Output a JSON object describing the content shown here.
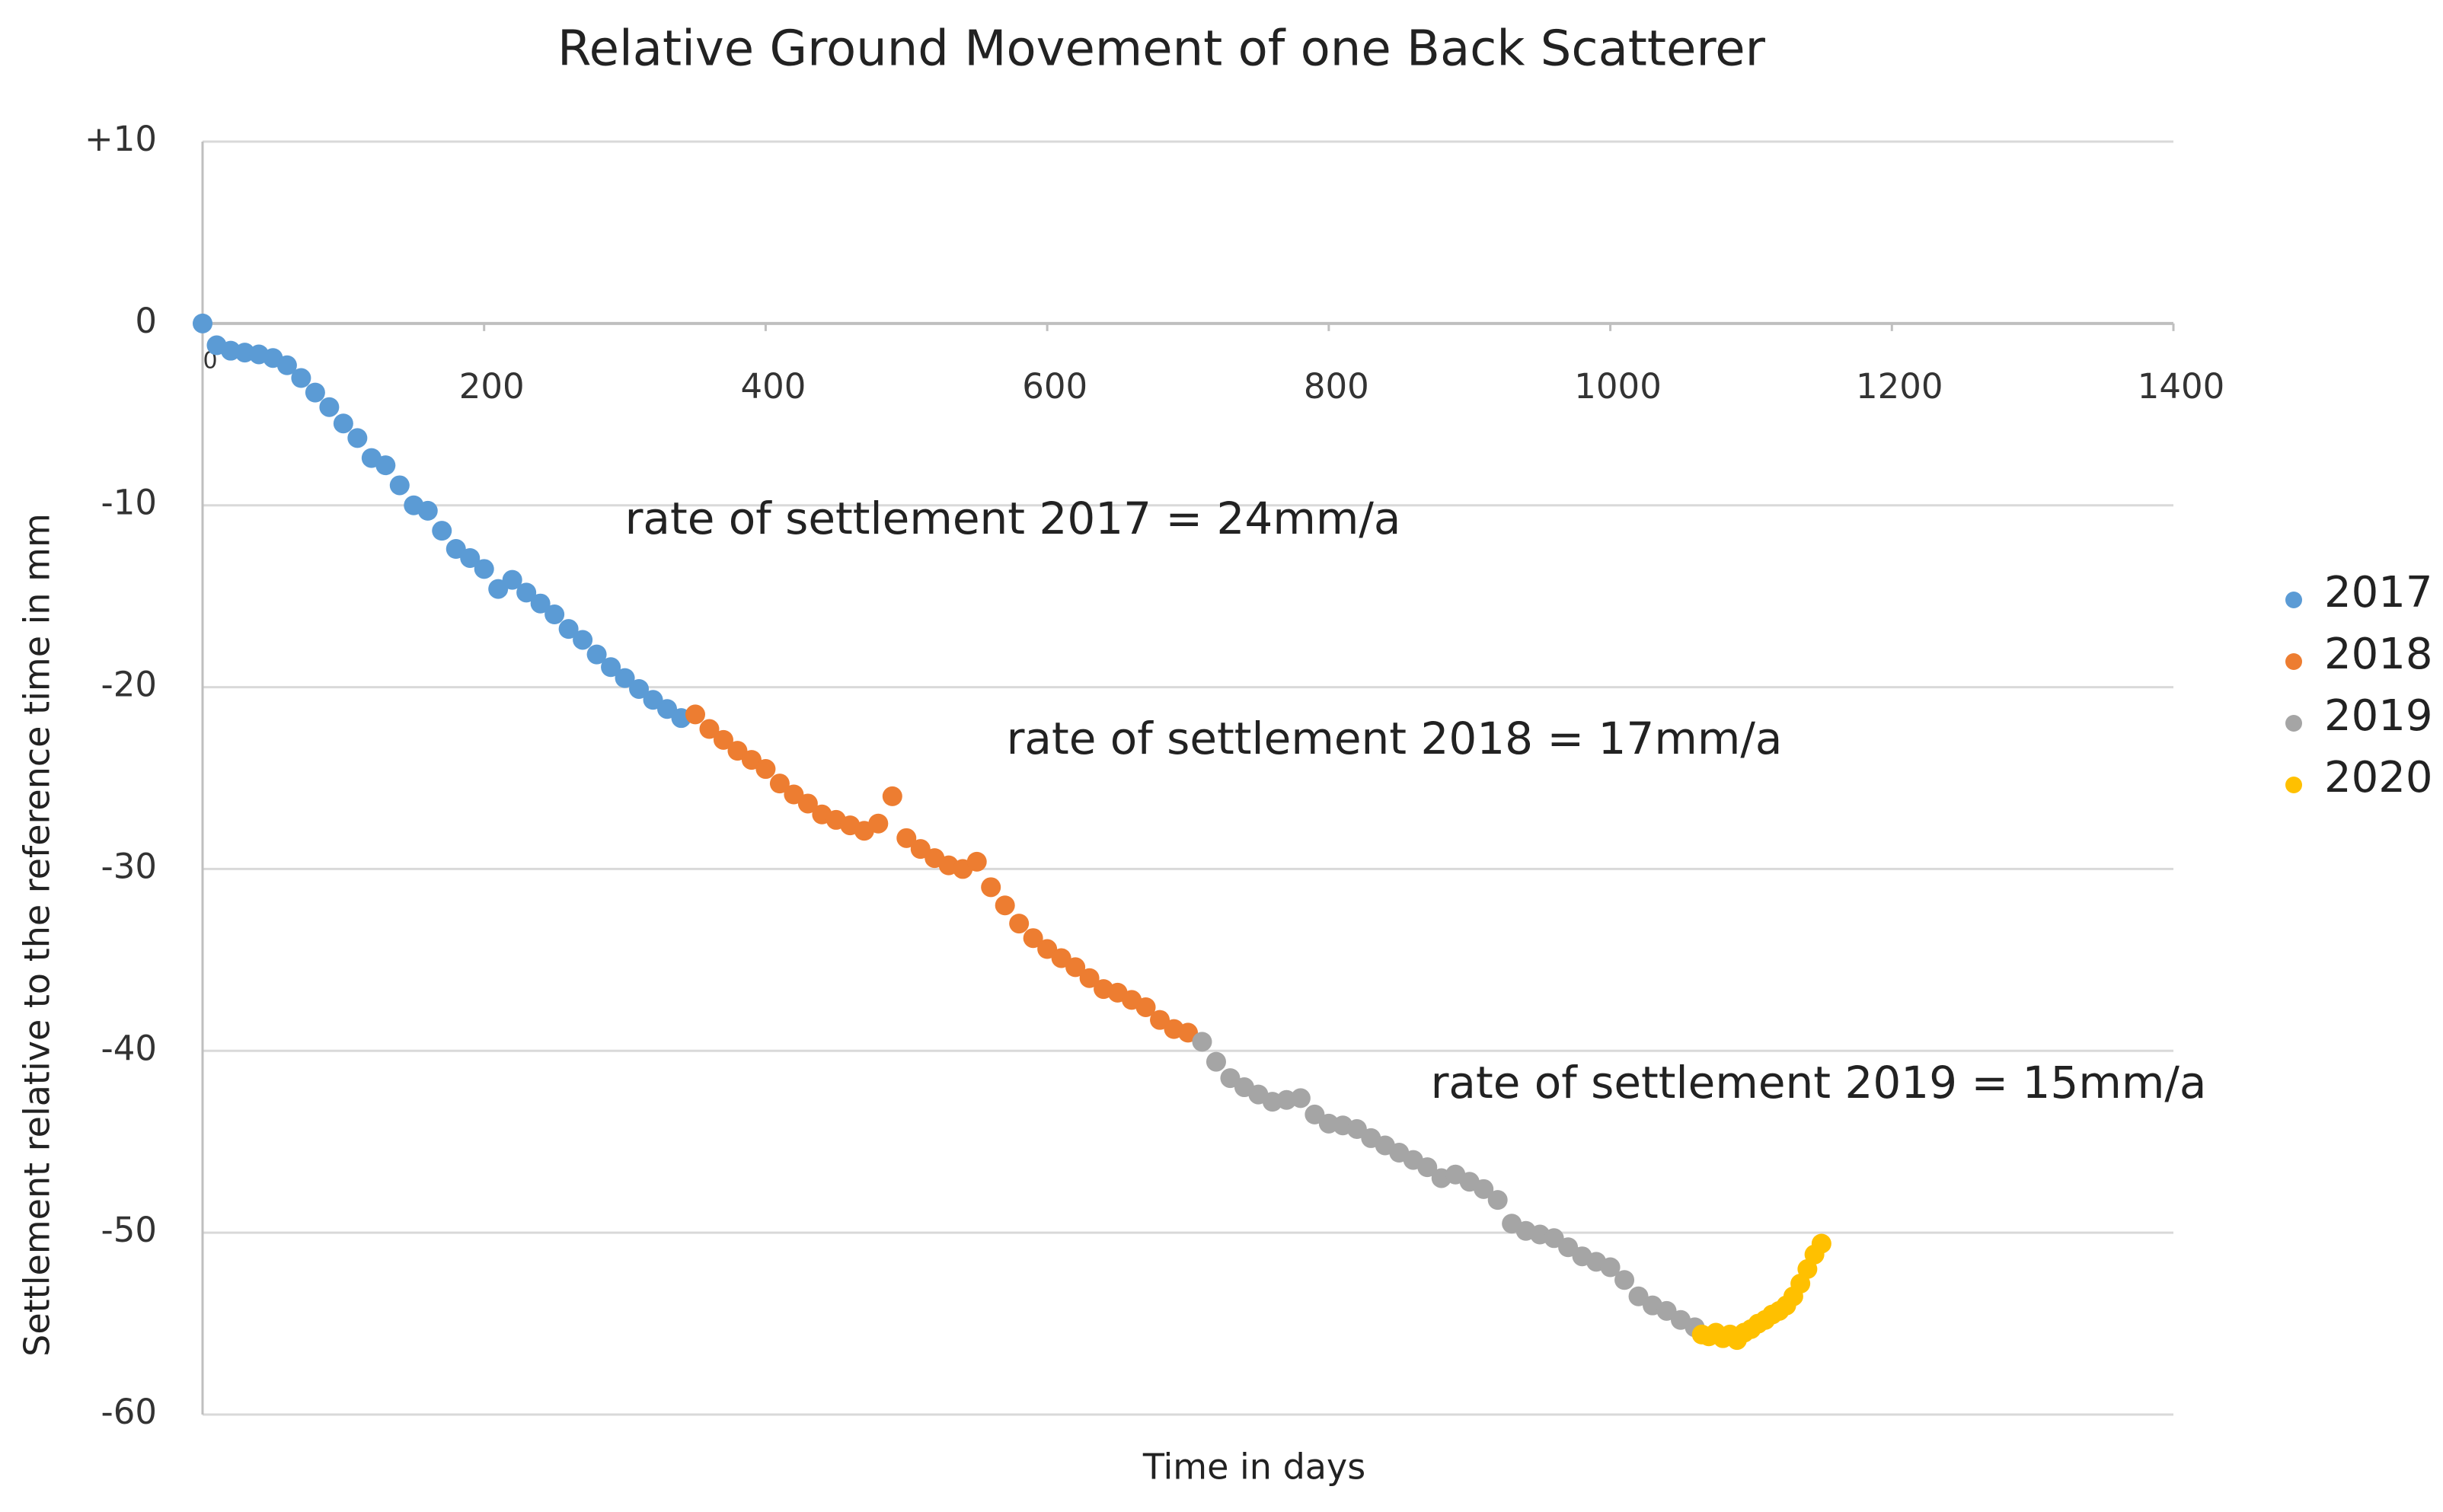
{
  "chart_data": {
    "type": "scatter",
    "title": "Relative Ground Movement of one Back Scatterer",
    "x_label": "Time in days",
    "y_label": "Settlement relative to the reference time in mm",
    "annotations": [
      "rate of settlement 2017 = 24mm/a",
      "rate of settlement 2018 = 17mm/a",
      "rate of settlement 2019 = 15mm/a"
    ],
    "xlim": [
      0,
      1400
    ],
    "xticks": [
      0,
      200,
      400,
      600,
      800,
      1000,
      1200,
      1400
    ],
    "ylim": [
      -60,
      10
    ],
    "yticks": [
      -60,
      -50,
      -40,
      -30,
      -20,
      -10,
      0,
      {
        "value": 10,
        "label": "+10"
      }
    ],
    "grid": true,
    "legend": "right",
    "series": [
      {
        "name": "2017",
        "color": "#5b9bd5",
        "x": [
          0,
          10,
          20,
          30,
          40,
          50,
          60,
          70,
          80,
          90,
          100,
          110,
          120,
          130,
          140,
          150,
          160,
          170,
          180,
          190,
          200,
          210,
          220,
          230,
          240,
          250,
          260,
          270,
          280,
          290,
          300,
          310,
          320,
          330,
          340
        ],
        "values": [
          0,
          -1.2,
          -1.5,
          -1.6,
          -1.7,
          -1.9,
          -2.3,
          -3.0,
          -3.8,
          -4.6,
          -5.5,
          -6.3,
          -7.4,
          -7.8,
          -8.9,
          -10.0,
          -10.3,
          -11.4,
          -12.4,
          -12.9,
          -13.5,
          -14.6,
          -14.1,
          -14.8,
          -15.4,
          -16.0,
          -16.8,
          -17.4,
          -18.2,
          -18.9,
          -19.5,
          -20.1,
          -20.7,
          -21.2,
          -21.7
        ]
      },
      {
        "name": "2018",
        "color": "#ed7d31",
        "x": [
          350,
          360,
          370,
          380,
          390,
          400,
          410,
          420,
          430,
          440,
          450,
          460,
          470,
          480,
          490,
          500,
          510,
          520,
          530,
          540,
          550,
          560,
          570,
          580,
          590,
          600,
          610,
          620,
          630,
          640,
          650,
          660,
          670,
          680,
          690,
          700
        ],
        "values": [
          -21.5,
          -22.3,
          -22.9,
          -23.5,
          -24.0,
          -24.5,
          -25.3,
          -25.9,
          -26.4,
          -27.0,
          -27.3,
          -27.6,
          -27.9,
          -27.5,
          -26.0,
          -28.3,
          -28.9,
          -29.4,
          -29.8,
          -30.0,
          -29.6,
          -31.0,
          -32.0,
          -33.0,
          -33.8,
          -34.4,
          -34.9,
          -35.4,
          -36.0,
          -36.6,
          -36.8,
          -37.2,
          -37.6,
          -38.3,
          -38.8,
          -39.0
        ]
      },
      {
        "name": "2019",
        "color": "#a5a5a5",
        "x": [
          710,
          720,
          730,
          740,
          750,
          760,
          770,
          780,
          790,
          800,
          810,
          820,
          830,
          840,
          850,
          860,
          870,
          880,
          890,
          900,
          910,
          920,
          930,
          940,
          950,
          960,
          970,
          980,
          990,
          1000,
          1010,
          1020,
          1030,
          1040,
          1050,
          1060
        ],
        "values": [
          -39.5,
          -40.6,
          -41.5,
          -42.0,
          -42.4,
          -42.8,
          -42.7,
          -42.6,
          -43.5,
          -44.0,
          -44.1,
          -44.3,
          -44.8,
          -45.2,
          -45.6,
          -46.0,
          -46.4,
          -47.0,
          -46.8,
          -47.2,
          -47.6,
          -48.2,
          -49.5,
          -49.9,
          -50.1,
          -50.3,
          -50.8,
          -51.3,
          -51.6,
          -51.9,
          -52.6,
          -53.5,
          -54.0,
          -54.3,
          -54.8,
          -55.2
        ]
      },
      {
        "name": "2020",
        "color": "#ffc000",
        "x": [
          1065,
          1070,
          1075,
          1080,
          1085,
          1090,
          1095,
          1100,
          1105,
          1110,
          1115,
          1120,
          1125,
          1130,
          1135,
          1140,
          1145,
          1150
        ],
        "values": [
          -55.6,
          -55.7,
          -55.5,
          -55.8,
          -55.6,
          -55.9,
          -55.5,
          -55.3,
          -55.0,
          -54.8,
          -54.5,
          -54.3,
          -54.0,
          -53.5,
          -52.8,
          -52.0,
          -51.2,
          -50.6
        ]
      }
    ]
  }
}
